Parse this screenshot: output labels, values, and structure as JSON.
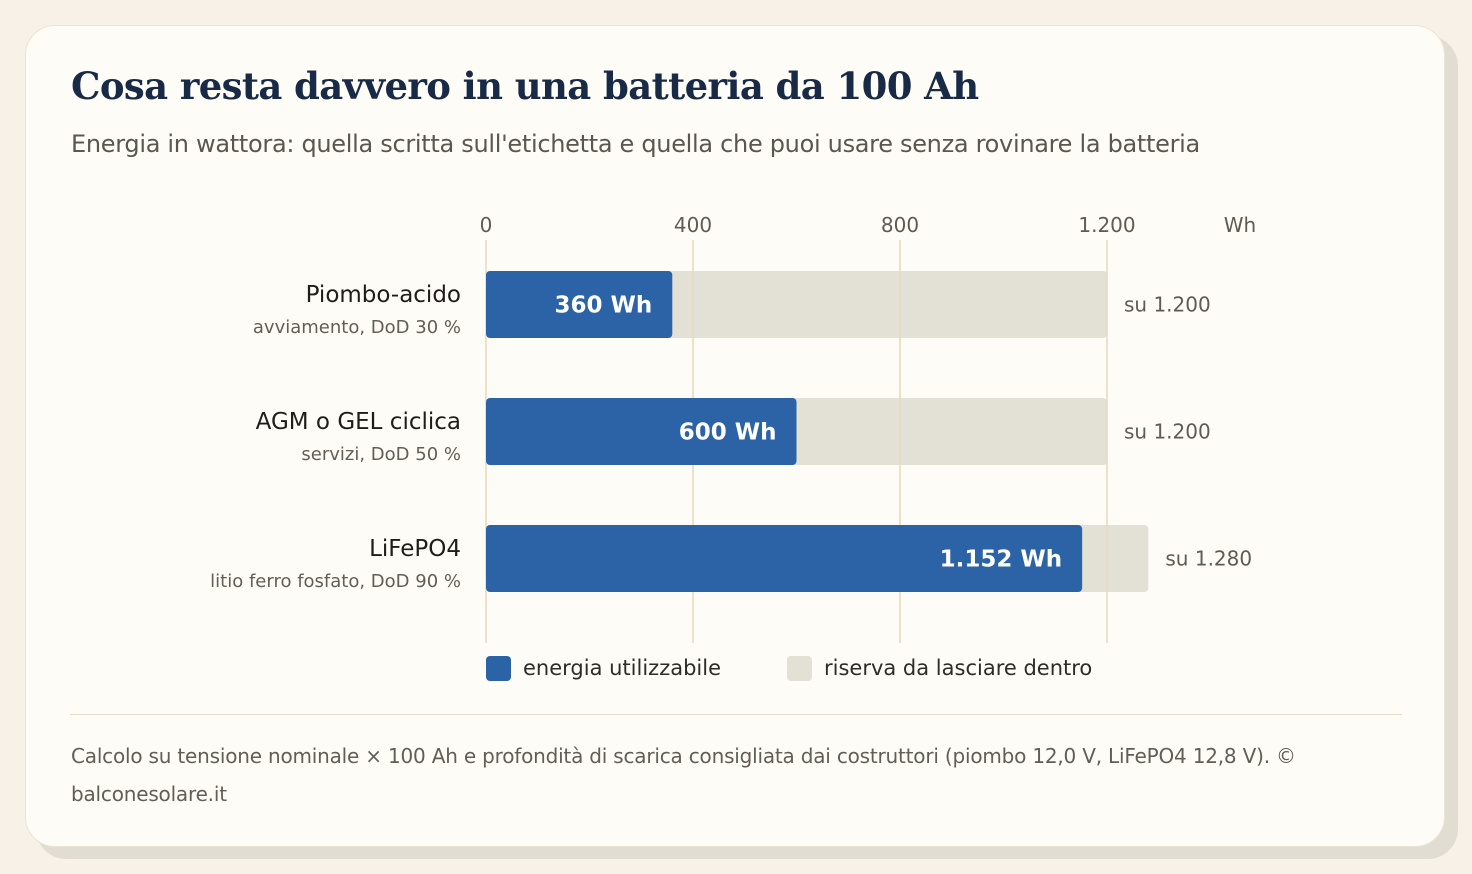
{
  "header": {
    "title": "Cosa resta davvero in una batteria da 100 Ah",
    "subtitle": "Energia in wattora: quella scritta sull'etichetta e quella che puoi usare senza rovinare la batteria"
  },
  "chart_data": {
    "type": "bar",
    "orientation": "horizontal",
    "stacked": true,
    "xlim": [
      0,
      1200
    ],
    "x_ticks": [
      {
        "value": 0,
        "label": "0"
      },
      {
        "value": 400,
        "label": "400"
      },
      {
        "value": 800,
        "label": "800"
      },
      {
        "value": 1200,
        "label": "1.200"
      }
    ],
    "unit_label": "Wh",
    "grid": true,
    "legend_position": "bottom",
    "categories": [
      {
        "name": "Piombo-acido",
        "detail": "avviamento, DoD 30 %"
      },
      {
        "name": "AGM o GEL ciclica",
        "detail": "servizi, DoD 50 %"
      },
      {
        "name": "LiFePO4",
        "detail": "litio ferro fosfato, DoD 90 %"
      }
    ],
    "series": [
      {
        "name": "energia utilizzabile",
        "color": "#2c63a7",
        "values": [
          360,
          600,
          1152
        ],
        "value_labels": [
          "360 Wh",
          "600 Wh",
          "1.152 Wh"
        ]
      },
      {
        "name": "riserva da lasciare dentro",
        "color": "#e3e0d5",
        "values": [
          840,
          600,
          128
        ]
      }
    ],
    "totals": [
      1200,
      1200,
      1280
    ],
    "total_labels": [
      "su 1.200",
      "su 1.200",
      "su 1.280"
    ]
  },
  "footnote": "Calcolo su tensione nominale × 100 Ah e profondità di scarica consigliata dai costruttori (piombo 12,0 V, LiFePO4 12,8 V). © balconesolare.it"
}
